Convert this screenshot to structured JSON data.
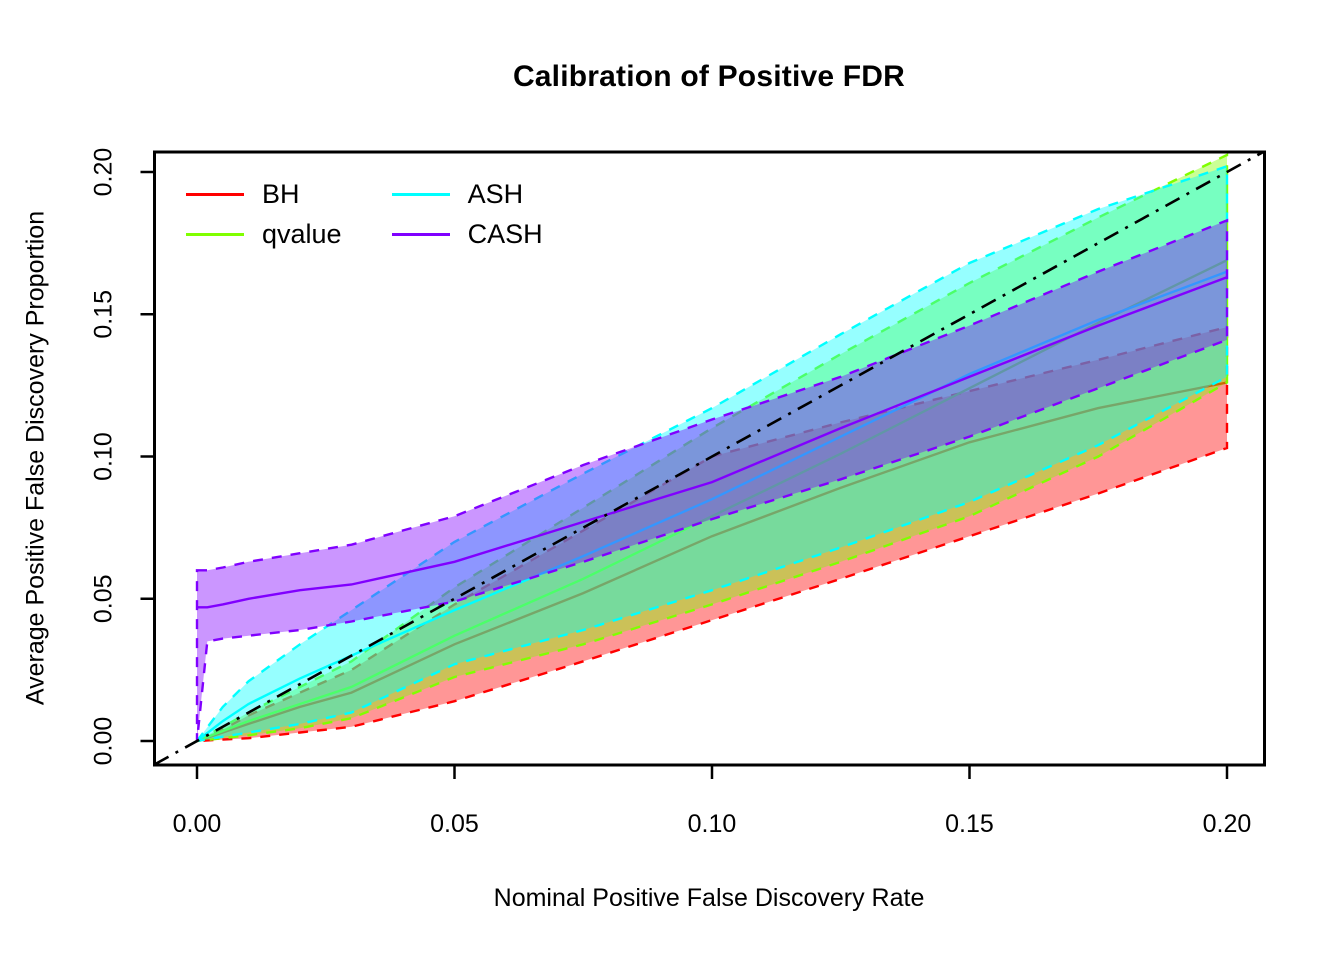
{
  "chart_data": {
    "type": "area",
    "title": "Calibration of Positive FDR",
    "xlabel": "Nominal Positive False Discovery Rate",
    "ylabel": "Average Positive False Discovery Proportion",
    "xlim": [
      0,
      0.2
    ],
    "ylim": [
      0,
      0.2
    ],
    "grid": false,
    "xticks": {
      "values": [
        0,
        0.05,
        0.1,
        0.15,
        0.2
      ],
      "labels": [
        "0.00",
        "0.05",
        "0.10",
        "0.15",
        "0.20"
      ]
    },
    "yticks": {
      "values": [
        0,
        0.05,
        0.1,
        0.15,
        0.2
      ],
      "labels": [
        "0.00",
        "0.05",
        "0.10",
        "0.15",
        "0.20"
      ]
    },
    "reference_line": {
      "type": "identity",
      "description": "y = x dash-dot diagonal",
      "color": "#000000",
      "style": "dash-dot"
    },
    "band_fill_alpha": 0.41,
    "legend": {
      "position": "top-left",
      "columns": 2,
      "entries": [
        {
          "label": "BH",
          "color": "#FF0000"
        },
        {
          "label": "qvalue",
          "color": "#80FF00"
        },
        {
          "label": "ASH",
          "color": "#00FFFF"
        },
        {
          "label": "CASH",
          "color": "#8000FF"
        }
      ]
    },
    "series": [
      {
        "name": "BH",
        "color": "#FF0000",
        "x": [
          0,
          0.005,
          0.01,
          0.02,
          0.03,
          0.05,
          0.075,
          0.1,
          0.125,
          0.15,
          0.175,
          0.2
        ],
        "mean": [
          0,
          0.003,
          0.006,
          0.012,
          0.017,
          0.034,
          0.052,
          0.072,
          0.089,
          0.105,
          0.117,
          0.126
        ],
        "lower": [
          0,
          0.0005,
          0.001,
          0.003,
          0.005,
          0.014,
          0.028,
          0.0425,
          0.057,
          0.072,
          0.087,
          0.103
        ],
        "upper": [
          0,
          0.004,
          0.009,
          0.017,
          0.025,
          0.048,
          0.074,
          0.1,
          0.112,
          0.123,
          0.134,
          0.1455
        ]
      },
      {
        "name": "qvalue",
        "color": "#80FF00",
        "x": [
          0,
          0.005,
          0.01,
          0.02,
          0.03,
          0.05,
          0.075,
          0.1,
          0.125,
          0.15,
          0.175,
          0.2
        ],
        "mean": [
          0,
          0.0035,
          0.007,
          0.013,
          0.019,
          0.037,
          0.057,
          0.079,
          0.101,
          0.124,
          0.147,
          0.169
        ],
        "lower": [
          0,
          0.001,
          0.002,
          0.0045,
          0.008,
          0.0225,
          0.034,
          0.048,
          0.063,
          0.079,
          0.1,
          0.126
        ],
        "upper": [
          0,
          0.005,
          0.01,
          0.019,
          0.028,
          0.054,
          0.082,
          0.11,
          0.136,
          0.161,
          0.184,
          0.206
        ]
      },
      {
        "name": "ASH",
        "color": "#00FFFF",
        "x": [
          0,
          0.005,
          0.01,
          0.02,
          0.03,
          0.05,
          0.075,
          0.1,
          0.125,
          0.15,
          0.175,
          0.2
        ],
        "mean": [
          0,
          0.007,
          0.013,
          0.022,
          0.03,
          0.046,
          0.065,
          0.085,
          0.107,
          0.129,
          0.148,
          0.165
        ],
        "lower": [
          0,
          0.0015,
          0.003,
          0.006,
          0.01,
          0.027,
          0.039,
          0.053,
          0.068,
          0.084,
          0.104,
          0.128
        ],
        "upper": [
          0,
          0.012,
          0.021,
          0.034,
          0.046,
          0.07,
          0.094,
          0.117,
          0.143,
          0.168,
          0.187,
          0.202
        ]
      },
      {
        "name": "CASH",
        "color": "#8000FF",
        "x": [
          0,
          0.002,
          0.005,
          0.01,
          0.02,
          0.03,
          0.05,
          0.075,
          0.1,
          0.125,
          0.15,
          0.175,
          0.2
        ],
        "mean": [
          0.047,
          0.047,
          0.048,
          0.05,
          0.053,
          0.055,
          0.063,
          0.077,
          0.091,
          0.11,
          0.128,
          0.146,
          0.163
        ],
        "lower": [
          0,
          0.035,
          0.036,
          0.037,
          0.039,
          0.042,
          0.049,
          0.063,
          0.078,
          0.092,
          0.107,
          0.124,
          0.141
        ],
        "upper": [
          0.06,
          0.06,
          0.061,
          0.063,
          0.066,
          0.069,
          0.079,
          0.097,
          0.113,
          0.128,
          0.146,
          0.165,
          0.183
        ]
      }
    ]
  }
}
